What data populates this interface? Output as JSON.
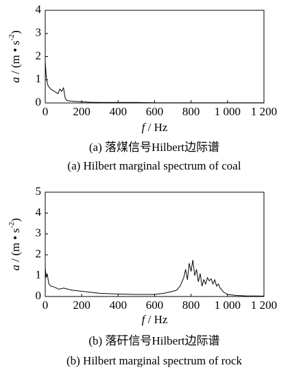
{
  "chart_data": [
    {
      "type": "line",
      "y_label": {
        "var": "a",
        "unit": " / (m • s",
        "sup": "-2",
        "end": ")"
      },
      "x_label": {
        "var": "f",
        "unit": " / Hz"
      },
      "caption_cn": "(a) 落煤信号Hilbert边际谱",
      "caption_en": "(a) Hilbert marginal spectrum of coal",
      "xlim": [
        0,
        1200
      ],
      "ylim": [
        0,
        4
      ],
      "xticks": [
        0,
        200,
        400,
        600,
        800,
        {
          "value": 1000,
          "label": "1 000"
        },
        {
          "value": 1200,
          "label": "1 200"
        }
      ],
      "yticks": [
        0,
        1,
        2,
        3,
        4
      ],
      "color": "#000000",
      "x": [
        0,
        5,
        10,
        15,
        20,
        30,
        40,
        50,
        60,
        70,
        80,
        90,
        100,
        110,
        120,
        140,
        160,
        180,
        200,
        250,
        300,
        400,
        500,
        600,
        700,
        800,
        900,
        1000,
        1100,
        1200
      ],
      "values": [
        1.8,
        1.2,
        0.9,
        0.75,
        0.7,
        0.6,
        0.55,
        0.5,
        0.45,
        0.4,
        0.6,
        0.5,
        0.65,
        0.2,
        0.1,
        0.08,
        0.07,
        0.06,
        0.05,
        0.03,
        0.02,
        0.02,
        0.02,
        0.01,
        0.01,
        0.01,
        0.01,
        0.01,
        0.01,
        0.01
      ]
    },
    {
      "type": "line",
      "y_label": {
        "var": "a",
        "unit": " / (m • s",
        "sup": "-2",
        "end": ")"
      },
      "x_label": {
        "var": "f",
        "unit": " / Hz"
      },
      "caption_cn": "(b) 落矸信号Hilbert边际谱",
      "caption_en": "(b) Hilbert marginal spectrum of rock",
      "xlim": [
        0,
        1200
      ],
      "ylim": [
        0,
        5
      ],
      "xticks": [
        0,
        200,
        400,
        600,
        800,
        {
          "value": 1000,
          "label": "1 000"
        },
        {
          "value": 1200,
          "label": "1 200"
        }
      ],
      "yticks": [
        0,
        1,
        2,
        3,
        4,
        5
      ],
      "color": "#000000",
      "x": [
        0,
        5,
        10,
        20,
        30,
        50,
        75,
        100,
        150,
        200,
        250,
        300,
        400,
        500,
        600,
        650,
        700,
        720,
        740,
        760,
        770,
        780,
        790,
        800,
        810,
        820,
        830,
        840,
        850,
        860,
        870,
        880,
        890,
        900,
        910,
        920,
        930,
        940,
        950,
        960,
        980,
        1000,
        1050,
        1100,
        1200
      ],
      "values": [
        1.4,
        0.9,
        1.1,
        0.6,
        0.5,
        0.45,
        0.35,
        0.4,
        0.3,
        0.25,
        0.2,
        0.15,
        0.12,
        0.1,
        0.1,
        0.15,
        0.25,
        0.3,
        0.5,
        0.9,
        1.3,
        0.8,
        1.6,
        1.2,
        1.75,
        1.0,
        1.3,
        0.7,
        1.1,
        0.5,
        0.8,
        0.6,
        0.9,
        0.75,
        0.85,
        0.6,
        0.8,
        0.5,
        0.6,
        0.4,
        0.2,
        0.1,
        0.05,
        0.03,
        0.02
      ]
    }
  ]
}
